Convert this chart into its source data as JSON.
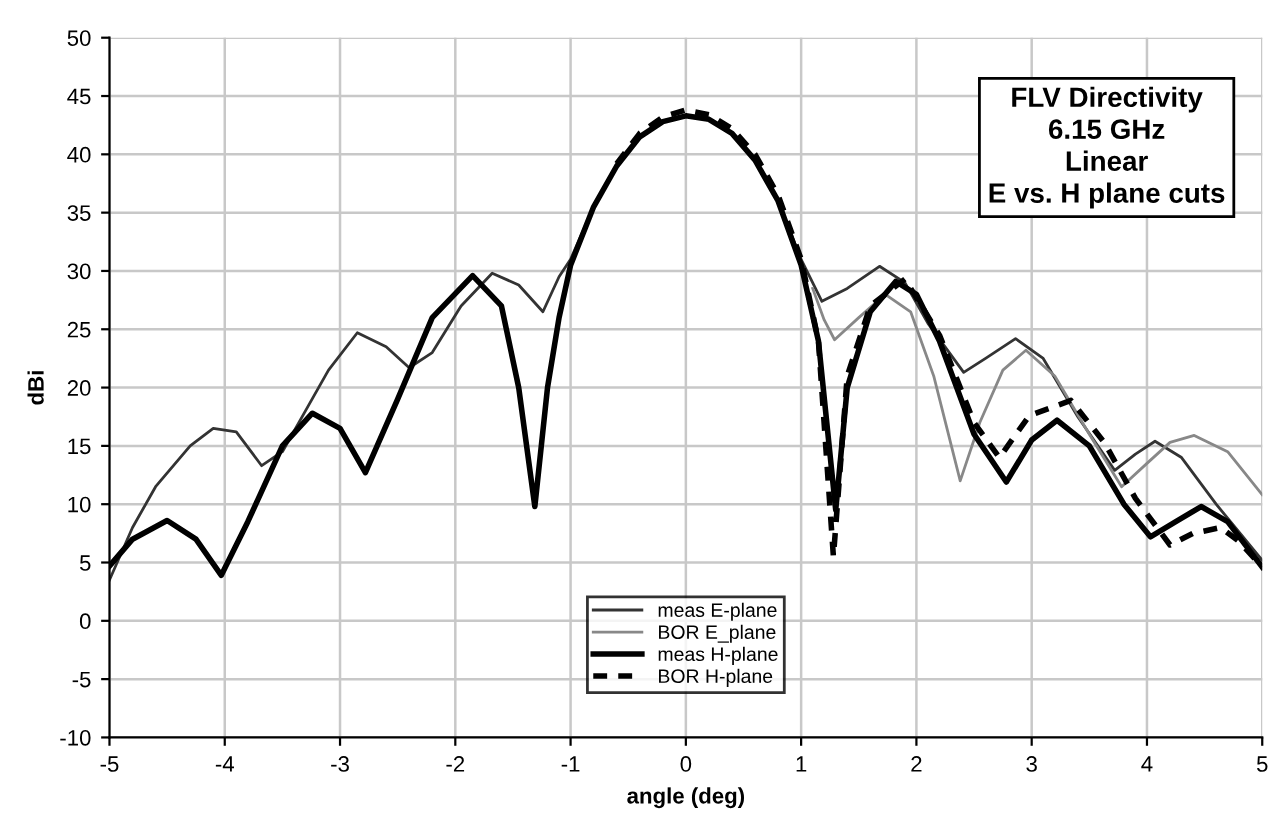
{
  "chart_data": {
    "type": "line",
    "title": "FLV Directivity\n6.15 GHz\nLinear\nE vs. H plane cuts",
    "xlabel": "angle (deg)",
    "ylabel": "dBi",
    "xlim": [
      -5,
      5
    ],
    "ylim": [
      -10,
      50
    ],
    "xticks": [
      -5,
      -4,
      -3,
      -2,
      -1,
      0,
      1,
      2,
      3,
      4,
      5
    ],
    "yticks": [
      -10,
      -5,
      0,
      5,
      10,
      15,
      20,
      25,
      30,
      35,
      40,
      45,
      50
    ],
    "grid": true,
    "legend": "bottom",
    "series": [
      {
        "name": "meas E-plane",
        "color": "#333333",
        "line_style": "solid",
        "x": [
          -5,
          -4.8,
          -4.6,
          -4.3,
          -4.1,
          -3.9,
          -3.68,
          -3.5,
          -3.3,
          -3.1,
          -2.85,
          -2.6,
          -2.4,
          -2.2,
          -1.95,
          -1.68,
          -1.45,
          -1.24,
          -1.1,
          -1,
          -0.8,
          -0.6,
          -0.4,
          -0.2,
          0,
          0.2,
          0.4,
          0.6,
          0.8,
          1.0,
          1.18,
          1.4,
          1.68,
          1.9,
          2.1,
          2.41,
          2.6,
          2.86,
          3.1,
          3.4,
          3.72,
          3.9,
          4.07,
          4.3,
          4.6,
          5
        ],
        "values": [
          3.5,
          8,
          11.5,
          15,
          16.5,
          16.2,
          13.3,
          14.5,
          18,
          21.5,
          24.7,
          23.5,
          21.7,
          23,
          27,
          29.8,
          28.8,
          26.5,
          29.5,
          31,
          35.5,
          39,
          41.5,
          42.8,
          43.3,
          43,
          41.8,
          39.5,
          36,
          31,
          27.4,
          28.5,
          30.4,
          29,
          25.5,
          21.3,
          22.5,
          24.2,
          22.5,
          17.5,
          12.9,
          14.3,
          15.4,
          14,
          10,
          5.2
        ]
      },
      {
        "name": "BOR E_plane",
        "color": "#888888",
        "line_style": "solid",
        "x": [
          1.1,
          1.2,
          1.29,
          1.5,
          1.73,
          1.95,
          2.15,
          2.38,
          2.55,
          2.75,
          2.95,
          3.2,
          3.5,
          3.78,
          4.0,
          4.2,
          4.41,
          4.7,
          5
        ],
        "values": [
          28.5,
          25.8,
          24.1,
          26,
          28,
          26.5,
          21,
          12,
          17,
          21.5,
          23.2,
          21,
          16,
          11.5,
          13.5,
          15.3,
          15.9,
          14.5,
          10.8
        ]
      },
      {
        "name": "meas H-plane",
        "color": "#000000",
        "line_style": "solid",
        "x": [
          -5,
          -4.8,
          -4.5,
          -4.25,
          -4.03,
          -3.8,
          -3.5,
          -3.24,
          -3,
          -2.78,
          -2.5,
          -2.2,
          -1.85,
          -1.6,
          -1.45,
          -1.31,
          -1.2,
          -1.1,
          -1,
          -0.8,
          -0.6,
          -0.4,
          -0.2,
          0,
          0.2,
          0.4,
          0.6,
          0.8,
          1.0,
          1.15,
          1.3,
          1.4,
          1.6,
          1.82,
          2.0,
          2.2,
          2.5,
          2.78,
          3.0,
          3.22,
          3.5,
          3.8,
          4.03,
          4.25,
          4.47,
          4.7,
          5
        ],
        "values": [
          4.7,
          7,
          8.6,
          7,
          3.9,
          8.5,
          15,
          17.8,
          16.5,
          12.7,
          19,
          26,
          29.6,
          27,
          20,
          9.8,
          20,
          26,
          30.5,
          35.5,
          39,
          41.5,
          42.8,
          43.3,
          43,
          41.8,
          39.5,
          36,
          30.5,
          24,
          9.5,
          20,
          26.5,
          29.1,
          28,
          24,
          16,
          11.9,
          15.5,
          17.2,
          15,
          10,
          7.2,
          8.5,
          9.8,
          8.5,
          4.6
        ]
      },
      {
        "name": "BOR H-plane",
        "color": "#000000",
        "line_style": "dashed",
        "x": [
          -0.6,
          -0.4,
          -0.2,
          0,
          0.2,
          0.4,
          0.6,
          0.8,
          1.0,
          1.15,
          1.28,
          1.4,
          1.6,
          1.9,
          2.2,
          2.5,
          2.72,
          2.98,
          3.34,
          3.63,
          3.9,
          4.2,
          4.4,
          4.64,
          4.8,
          5
        ],
        "values": [
          39.2,
          41.8,
          43.2,
          43.8,
          43.4,
          42.2,
          40,
          36.5,
          31,
          24,
          5.5,
          21,
          27,
          29.3,
          24.5,
          17,
          14,
          17.6,
          18.9,
          15.3,
          10.5,
          6.5,
          7.5,
          8,
          6.8,
          4.6
        ]
      }
    ]
  }
}
